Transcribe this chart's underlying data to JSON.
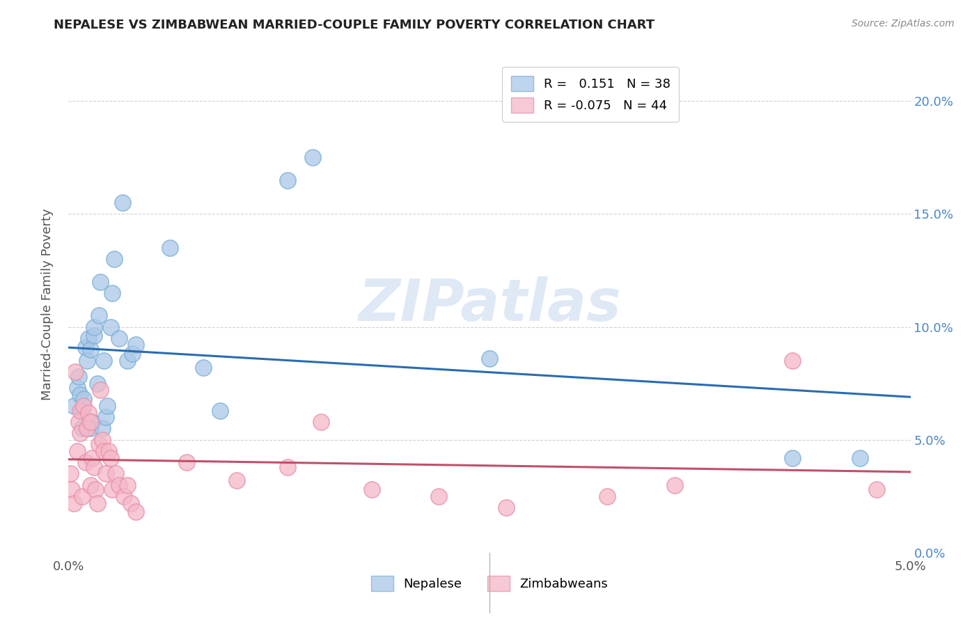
{
  "title": "NEPALESE VS ZIMBABWEAN MARRIED-COUPLE FAMILY POVERTY CORRELATION CHART",
  "source": "Source: ZipAtlas.com",
  "ylabel": "Married-Couple Family Poverty",
  "xlim": [
    0.0,
    0.05
  ],
  "ylim": [
    0.0,
    0.22
  ],
  "x_ticks": [
    0.0,
    0.05
  ],
  "x_tick_labels": [
    "0.0%",
    "5.0%"
  ],
  "y_ticks": [
    0.0,
    0.05,
    0.1,
    0.15,
    0.2
  ],
  "y_tick_labels_right": [
    "0.0%",
    "5.0%",
    "10.0%",
    "15.0%",
    "20.0%"
  ],
  "nepalese_R": 0.151,
  "nepalese_N": 38,
  "zimbabwean_R": -0.075,
  "zimbabwean_N": 44,
  "nepalese_color": "#aac8e8",
  "nepalese_edge_color": "#7bafd4",
  "zimbabwean_color": "#f4b8c8",
  "zimbabwean_edge_color": "#e890a8",
  "nepalese_line_color": "#2b6cb0",
  "zimbabwean_line_color": "#c0506a",
  "legend_nepalese": "Nepalese",
  "legend_zimbabwean": "Zimbabweans",
  "watermark": "ZIPatlas",
  "grid_color": "#cccccc",
  "right_tick_color": "#4a86c8",
  "nepalese_x": [
    0.0003,
    0.0005,
    0.0006,
    0.0007,
    0.0008,
    0.0008,
    0.0009,
    0.001,
    0.0011,
    0.0012,
    0.0013,
    0.0013,
    0.0014,
    0.0015,
    0.0015,
    0.0017,
    0.0018,
    0.0019,
    0.002,
    0.0021,
    0.0022,
    0.0023,
    0.0025,
    0.0026,
    0.0027,
    0.003,
    0.0032,
    0.0035,
    0.0038,
    0.004,
    0.006,
    0.008,
    0.009,
    0.013,
    0.0145,
    0.025,
    0.043,
    0.047
  ],
  "nepalese_y": [
    0.065,
    0.073,
    0.078,
    0.07,
    0.055,
    0.063,
    0.068,
    0.091,
    0.085,
    0.095,
    0.09,
    0.055,
    0.058,
    0.096,
    0.1,
    0.075,
    0.105,
    0.12,
    0.055,
    0.085,
    0.06,
    0.065,
    0.1,
    0.115,
    0.13,
    0.095,
    0.155,
    0.085,
    0.088,
    0.092,
    0.135,
    0.082,
    0.063,
    0.165,
    0.175,
    0.086,
    0.042,
    0.042
  ],
  "zimbabwean_x": [
    0.0001,
    0.0002,
    0.0003,
    0.0004,
    0.0005,
    0.0006,
    0.0007,
    0.0007,
    0.0008,
    0.0009,
    0.001,
    0.0011,
    0.0012,
    0.0013,
    0.0013,
    0.0014,
    0.0015,
    0.0016,
    0.0017,
    0.0018,
    0.0019,
    0.002,
    0.0021,
    0.0022,
    0.0024,
    0.0025,
    0.0026,
    0.0028,
    0.003,
    0.0033,
    0.0035,
    0.0037,
    0.004,
    0.007,
    0.01,
    0.013,
    0.015,
    0.018,
    0.022,
    0.026,
    0.032,
    0.036,
    0.043,
    0.048
  ],
  "zimbabwean_y": [
    0.035,
    0.028,
    0.022,
    0.08,
    0.045,
    0.058,
    0.063,
    0.053,
    0.025,
    0.065,
    0.04,
    0.055,
    0.062,
    0.03,
    0.058,
    0.042,
    0.038,
    0.028,
    0.022,
    0.048,
    0.072,
    0.05,
    0.045,
    0.035,
    0.045,
    0.042,
    0.028,
    0.035,
    0.03,
    0.025,
    0.03,
    0.022,
    0.018,
    0.04,
    0.032,
    0.038,
    0.058,
    0.028,
    0.025,
    0.02,
    0.025,
    0.03,
    0.085,
    0.028
  ]
}
